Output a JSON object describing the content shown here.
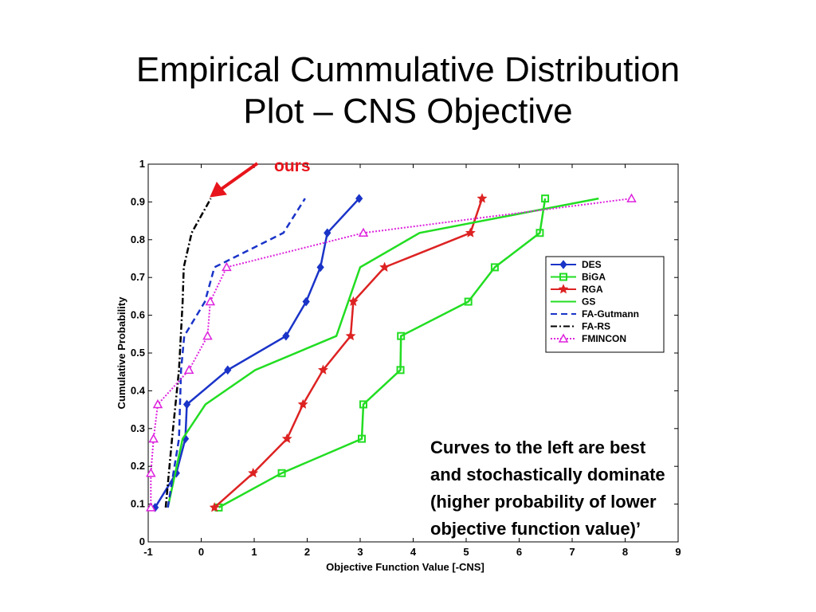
{
  "slide": {
    "title_line1": "Empirical Cummulative Distribution",
    "title_line2": "Plot – CNS Objective"
  },
  "annotation": {
    "label": "ours",
    "color": "#e8141b"
  },
  "callout": {
    "lines": [
      "Curves to the left are best",
      "and stochastically dominate",
      "(higher probability of lower",
      "objective function value)’"
    ]
  },
  "chart_data": {
    "type": "line",
    "title": "",
    "xlabel": "Objective Function Value [-CNS]",
    "ylabel": "Cumulative Probability",
    "xlim": [
      -1,
      9
    ],
    "ylim": [
      0,
      1
    ],
    "xticks": [
      "-1",
      "0",
      "1",
      "2",
      "3",
      "4",
      "5",
      "6",
      "7",
      "8",
      "9"
    ],
    "yticks": [
      "0",
      "0.1",
      "0.2",
      "0.3",
      "0.4",
      "0.5",
      "0.6",
      "0.7",
      "0.8",
      "0.9",
      "1"
    ],
    "grid": false,
    "legend_position": "right",
    "series": [
      {
        "name": "DES",
        "color": "#1a34c8",
        "marker": "diamond",
        "dash": "solid",
        "x": [
          -0.87,
          -0.47,
          -0.3,
          -0.27,
          0.5,
          1.6,
          1.98,
          2.25,
          2.38,
          2.98
        ],
        "y": [
          0.091,
          0.182,
          0.273,
          0.364,
          0.455,
          0.545,
          0.636,
          0.727,
          0.818,
          0.909
        ]
      },
      {
        "name": "BiGA",
        "color": "#22dd22",
        "marker": "square",
        "dash": "solid",
        "x": [
          0.33,
          1.52,
          3.03,
          3.06,
          3.76,
          3.77,
          5.04,
          5.54,
          6.39,
          6.49
        ],
        "y": [
          0.091,
          0.182,
          0.273,
          0.364,
          0.455,
          0.545,
          0.636,
          0.727,
          0.818,
          0.909
        ]
      },
      {
        "name": "RGA",
        "color": "#dd2222",
        "marker": "star",
        "dash": "solid",
        "x": [
          0.25,
          0.98,
          1.62,
          1.92,
          2.3,
          2.82,
          2.87,
          3.46,
          5.08,
          5.3
        ],
        "y": [
          0.091,
          0.182,
          0.273,
          0.364,
          0.455,
          0.545,
          0.636,
          0.727,
          0.818,
          0.909
        ]
      },
      {
        "name": "GS",
        "color": "#22dd22",
        "marker": "none",
        "dash": "solid",
        "x": [
          -0.63,
          -0.35,
          0.08,
          1.02,
          2.55,
          3.0,
          4.12,
          7.5
        ],
        "y": [
          0.091,
          0.273,
          0.364,
          0.455,
          0.545,
          0.727,
          0.818,
          0.909
        ]
      },
      {
        "name": "FA-Gutmann",
        "color": "#1a34c8",
        "marker": "none",
        "dash": "dashed",
        "x": [
          -0.63,
          -0.42,
          -0.38,
          -0.32,
          0.07,
          0.25,
          1.55,
          1.96
        ],
        "y": [
          0.091,
          0.273,
          0.455,
          0.545,
          0.636,
          0.727,
          0.818,
          0.909
        ]
      },
      {
        "name": "FA-RS",
        "color": "#000000",
        "marker": "none",
        "dash": "dashdot",
        "x": [
          -0.67,
          -0.55,
          -0.42,
          -0.35,
          -0.33,
          -0.18,
          0.18
        ],
        "y": [
          0.091,
          0.273,
          0.455,
          0.636,
          0.727,
          0.818,
          0.909
        ]
      },
      {
        "name": "FMINCON",
        "color": "#dd22dd",
        "marker": "triangle",
        "dash": "dotted",
        "x": [
          -0.95,
          -0.95,
          -0.9,
          -0.82,
          -0.23,
          0.12,
          0.17,
          0.48,
          3.06,
          8.12
        ],
        "y": [
          0.091,
          0.182,
          0.273,
          0.364,
          0.455,
          0.545,
          0.636,
          0.727,
          0.818,
          0.909
        ]
      }
    ]
  }
}
